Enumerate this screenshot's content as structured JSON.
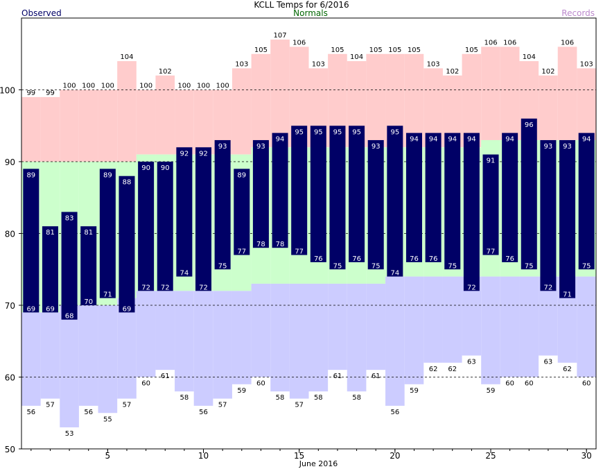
{
  "chart_data": {
    "type": "bar",
    "title": "KCLL Temps for 6/2016",
    "xlabel": "June 2016",
    "ylabel": "",
    "ylim": [
      50,
      110
    ],
    "xlim": [
      0.5,
      30.5
    ],
    "grid": true,
    "legend": [
      "Observed",
      "Normals",
      "Records"
    ],
    "x_ticks": [
      5,
      10,
      15,
      20,
      25,
      30
    ],
    "y_ticks": [
      50,
      60,
      70,
      80,
      90,
      100
    ],
    "days": [
      1,
      2,
      3,
      4,
      5,
      6,
      7,
      8,
      9,
      10,
      11,
      12,
      13,
      14,
      15,
      16,
      17,
      18,
      19,
      20,
      21,
      22,
      23,
      24,
      25,
      26,
      27,
      28,
      29,
      30
    ],
    "series": [
      {
        "name": "Observed",
        "kind": "high",
        "values": [
          89,
          81,
          83,
          81,
          89,
          88,
          90,
          90,
          92,
          92,
          93,
          89,
          93,
          94,
          95,
          95,
          95,
          95,
          93,
          95,
          94,
          94,
          94,
          94,
          91,
          94,
          96,
          93,
          93,
          94
        ]
      },
      {
        "name": "Observed",
        "kind": "low",
        "values": [
          69,
          69,
          68,
          70,
          71,
          69,
          72,
          72,
          74,
          72,
          75,
          77,
          78,
          78,
          77,
          76,
          75,
          76,
          75,
          74,
          76,
          76,
          75,
          72,
          77,
          76,
          75,
          72,
          71,
          75
        ]
      },
      {
        "name": "Records",
        "kind": "record_high",
        "values": [
          99,
          99,
          100,
          100,
          100,
          104,
          100,
          102,
          100,
          100,
          100,
          103,
          105,
          107,
          106,
          103,
          105,
          104,
          105,
          105,
          105,
          103,
          102,
          105,
          106,
          106,
          104,
          102,
          106,
          103
        ]
      },
      {
        "name": "Records",
        "kind": "record_low",
        "values": [
          56,
          57,
          53,
          56,
          55,
          57,
          60,
          61,
          58,
          56,
          57,
          59,
          60,
          58,
          57,
          58,
          61,
          58,
          61,
          56,
          59,
          62,
          62,
          63,
          59,
          60,
          60,
          63,
          62,
          60
        ]
      },
      {
        "name": "Normals",
        "kind": "normal_high",
        "values": [
          90,
          90,
          90,
          90,
          90,
          90,
          91,
          91,
          91,
          91,
          91,
          91,
          92,
          92,
          92,
          92,
          92,
          92,
          92,
          92,
          92,
          92,
          92,
          92,
          93,
          93,
          93,
          93,
          93,
          93
        ]
      },
      {
        "name": "Normals",
        "kind": "normal_low",
        "values": [
          69,
          69,
          70,
          70,
          70,
          71,
          72,
          72,
          72,
          72,
          72,
          72,
          73,
          73,
          73,
          73,
          73,
          73,
          73,
          74,
          74,
          74,
          74,
          74,
          74,
          74,
          74,
          74,
          74,
          74
        ]
      }
    ],
    "colors": {
      "observed": "#000066",
      "observed_label": "#ffffff",
      "record_high_fill": "#ffcccc",
      "normal_fill": "#ccffcc",
      "record_low_fill": "#ccccff",
      "normals_text": "#006600",
      "records_text": "#bb88cc",
      "label_text": "#000000"
    }
  }
}
